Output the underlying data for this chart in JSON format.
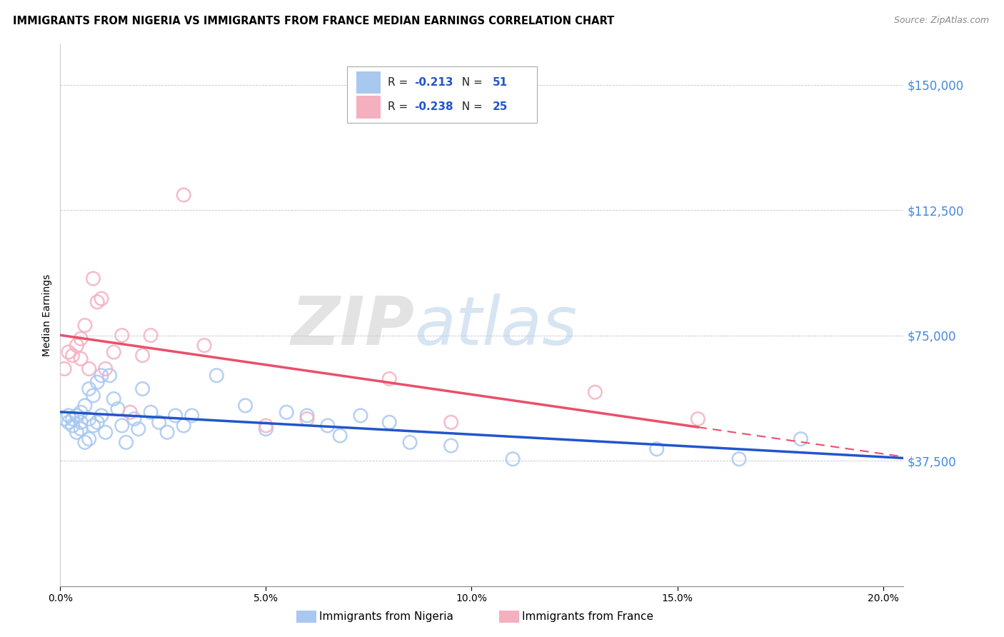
{
  "title": "IMMIGRANTS FROM NIGERIA VS IMMIGRANTS FROM FRANCE MEDIAN EARNINGS CORRELATION CHART",
  "source": "Source: ZipAtlas.com",
  "ylabel": "Median Earnings",
  "y_ticks": [
    0,
    37500,
    75000,
    112500,
    150000
  ],
  "y_tick_labels": [
    "",
    "$37,500",
    "$75,000",
    "$112,500",
    "$150,000"
  ],
  "x_min": 0.0,
  "x_max": 0.205,
  "y_min": 0,
  "y_max": 162000,
  "nigeria_R": -0.213,
  "nigeria_N": 51,
  "france_R": -0.238,
  "france_N": 25,
  "nigeria_color": "#A8C8F0",
  "france_color": "#F5B0C0",
  "nigeria_line_color": "#2255CC",
  "france_line_color": "#E8506A",
  "nigeria_x": [
    0.001,
    0.002,
    0.002,
    0.003,
    0.003,
    0.004,
    0.004,
    0.005,
    0.005,
    0.005,
    0.006,
    0.006,
    0.007,
    0.007,
    0.007,
    0.008,
    0.008,
    0.009,
    0.009,
    0.01,
    0.01,
    0.011,
    0.012,
    0.013,
    0.014,
    0.015,
    0.016,
    0.018,
    0.019,
    0.02,
    0.022,
    0.024,
    0.026,
    0.028,
    0.03,
    0.032,
    0.038,
    0.045,
    0.05,
    0.055,
    0.06,
    0.065,
    0.068,
    0.073,
    0.08,
    0.085,
    0.095,
    0.11,
    0.145,
    0.165,
    0.18
  ],
  "nigeria_y": [
    50000,
    49000,
    51000,
    50000,
    48000,
    51000,
    46000,
    52000,
    49000,
    47000,
    54000,
    43000,
    59000,
    50000,
    44000,
    57000,
    48000,
    61000,
    49000,
    63000,
    51000,
    46000,
    63000,
    56000,
    53000,
    48000,
    43000,
    50000,
    47000,
    59000,
    52000,
    49000,
    46000,
    51000,
    48000,
    51000,
    63000,
    54000,
    47000,
    52000,
    51000,
    48000,
    45000,
    51000,
    49000,
    43000,
    42000,
    38000,
    41000,
    38000,
    44000
  ],
  "france_x": [
    0.001,
    0.002,
    0.003,
    0.004,
    0.005,
    0.005,
    0.006,
    0.007,
    0.008,
    0.009,
    0.01,
    0.011,
    0.013,
    0.015,
    0.017,
    0.02,
    0.022,
    0.03,
    0.035,
    0.05,
    0.06,
    0.08,
    0.095,
    0.13,
    0.155
  ],
  "france_y": [
    65000,
    70000,
    69000,
    72000,
    74000,
    68000,
    78000,
    65000,
    92000,
    85000,
    86000,
    65000,
    70000,
    75000,
    52000,
    69000,
    75000,
    117000,
    72000,
    48000,
    50000,
    62000,
    49000,
    58000,
    50000
  ],
  "background_color": "#FFFFFF",
  "watermark_zip": "ZIP",
  "watermark_atlas": "atlas",
  "legend_nigeria_text": "R = ",
  "legend_france_text": "R = ",
  "title_fontsize": 10.5,
  "bottom_legend_nigeria": "Immigrants from Nigeria",
  "bottom_legend_france": "Immigrants from France"
}
